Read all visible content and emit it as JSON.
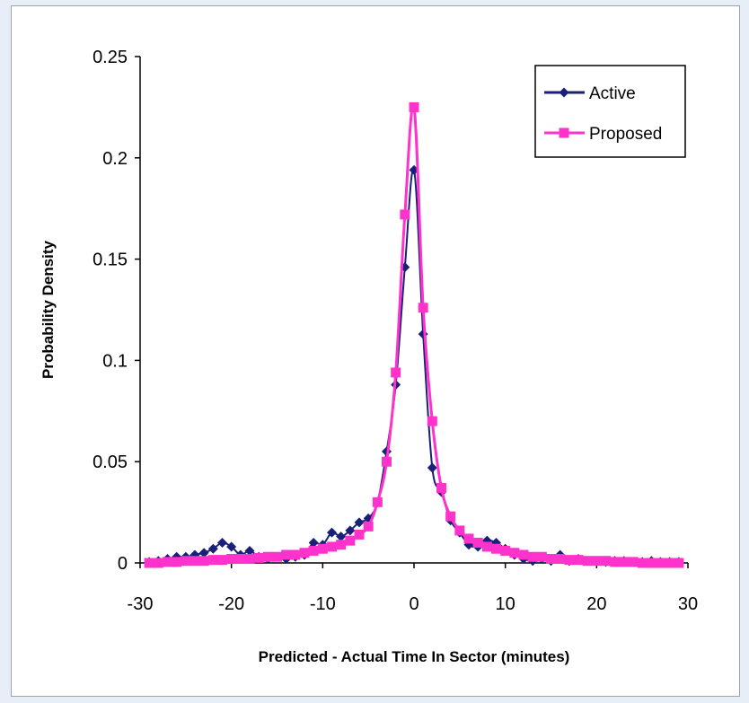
{
  "chart_data": {
    "type": "line",
    "title": "",
    "xlabel": "Predicted - Actual Time In Sector  (minutes)",
    "ylabel": "Probability Density",
    "xlim": [
      -30,
      30
    ],
    "ylim": [
      0,
      0.25
    ],
    "xticks": [
      "-30",
      "-20",
      "-10",
      "0",
      "10",
      "20",
      "30"
    ],
    "yticks": [
      "0",
      "0.05",
      "0.1",
      "0.15",
      "0.2",
      "0.25"
    ],
    "grid": false,
    "legend": "top-right",
    "series": [
      {
        "name": "Active",
        "color": "#1a1f7a",
        "marker": "diamond",
        "x": [
          -29,
          -28,
          -27,
          -26,
          -25,
          -24,
          -23,
          -22,
          -21,
          -20,
          -19,
          -18,
          -17,
          -16,
          -15,
          -14,
          -13,
          -12,
          -11,
          -10,
          -9,
          -8,
          -7,
          -6,
          -5,
          -4,
          -3,
          -2,
          -1,
          0,
          1,
          2,
          3,
          4,
          5,
          6,
          7,
          8,
          9,
          10,
          11,
          12,
          13,
          14,
          15,
          16,
          17,
          18,
          19,
          20,
          21,
          22,
          23,
          24,
          25,
          26,
          27,
          28,
          29
        ],
        "y": [
          0.0005,
          0.001,
          0.002,
          0.003,
          0.003,
          0.004,
          0.005,
          0.007,
          0.01,
          0.008,
          0.004,
          0.006,
          0.003,
          0.002,
          0.003,
          0.002,
          0.003,
          0.004,
          0.01,
          0.009,
          0.015,
          0.013,
          0.016,
          0.02,
          0.022,
          0.03,
          0.055,
          0.088,
          0.146,
          0.194,
          0.113,
          0.047,
          0.035,
          0.021,
          0.015,
          0.009,
          0.008,
          0.011,
          0.01,
          0.007,
          0.004,
          0.002,
          0.001,
          0.002,
          0.001,
          0.004,
          0.001,
          0.002,
          0.001,
          0.001,
          0.0005,
          0.001,
          0.001,
          0.0005,
          0.0005,
          0.001,
          0.0005,
          0.0005,
          0.0005
        ]
      },
      {
        "name": "Proposed",
        "color": "#ff33cc",
        "marker": "square",
        "x": [
          -29,
          -28,
          -27,
          -26,
          -25,
          -24,
          -23,
          -22,
          -21,
          -20,
          -19,
          -18,
          -17,
          -16,
          -15,
          -14,
          -13,
          -12,
          -11,
          -10,
          -9,
          -8,
          -7,
          -6,
          -5,
          -4,
          -3,
          -2,
          -1,
          0,
          1,
          2,
          3,
          4,
          5,
          6,
          7,
          8,
          9,
          10,
          11,
          12,
          13,
          14,
          15,
          16,
          17,
          18,
          19,
          20,
          21,
          22,
          23,
          24,
          25,
          26,
          27,
          28,
          29
        ],
        "y": [
          0.0,
          0.0,
          0.0005,
          0.0005,
          0.001,
          0.001,
          0.001,
          0.0015,
          0.0015,
          0.002,
          0.002,
          0.002,
          0.0025,
          0.003,
          0.003,
          0.004,
          0.004,
          0.005,
          0.006,
          0.007,
          0.008,
          0.009,
          0.011,
          0.014,
          0.018,
          0.03,
          0.05,
          0.094,
          0.172,
          0.225,
          0.126,
          0.07,
          0.037,
          0.023,
          0.016,
          0.012,
          0.01,
          0.008,
          0.007,
          0.006,
          0.005,
          0.004,
          0.003,
          0.003,
          0.002,
          0.002,
          0.0015,
          0.0015,
          0.001,
          0.001,
          0.001,
          0.0005,
          0.0005,
          0.0005,
          0.0,
          0.0,
          0.0,
          0.0,
          0.0
        ]
      }
    ]
  }
}
